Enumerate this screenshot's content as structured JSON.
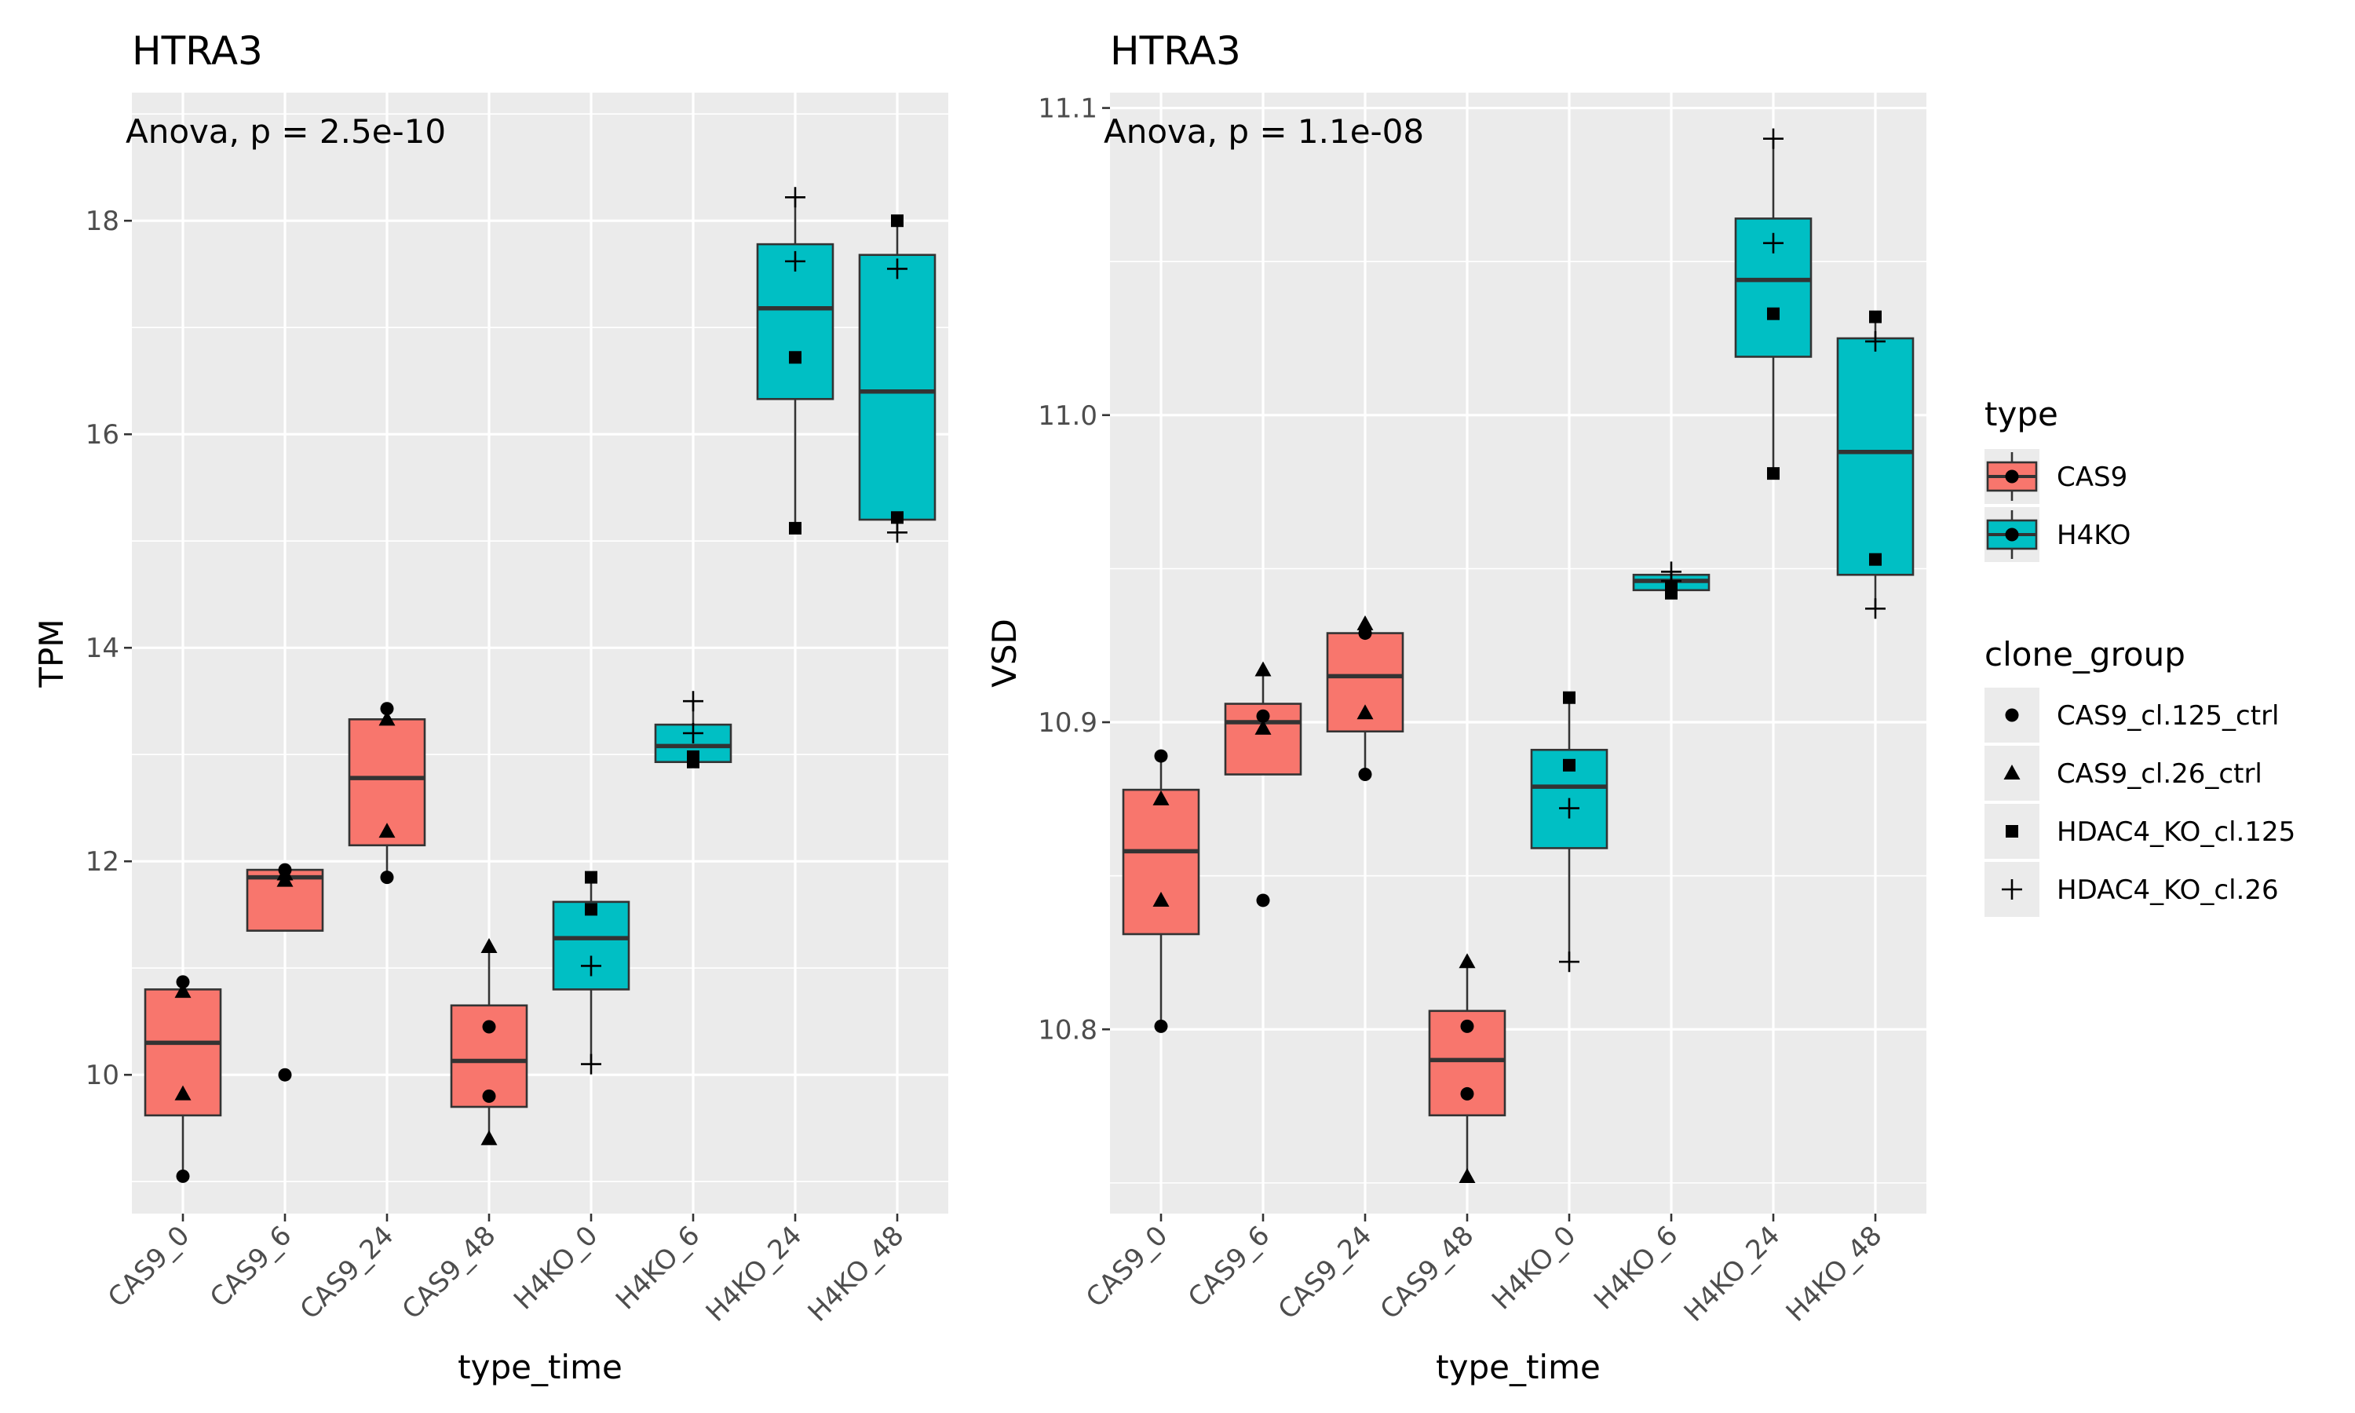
{
  "chart_data": [
    {
      "type": "box",
      "title": "HTRA3",
      "annotation": "Anova, p = 2.5e-10",
      "xlabel": "type_time",
      "ylabel": "TPM",
      "ylim": [
        8.7,
        19.2
      ],
      "yticks": [
        10,
        12,
        14,
        16,
        18
      ],
      "ytick_labels": [
        "10",
        "12",
        "14",
        "16",
        "18"
      ],
      "categories": [
        "CAS9_0",
        "CAS9_6",
        "CAS9_24",
        "CAS9_48",
        "H4KO_0",
        "H4KO_6",
        "H4KO_24",
        "H4KO_48"
      ],
      "boxes": [
        {
          "type": "CAS9",
          "lower": 9.05,
          "q1": 9.62,
          "median": 10.3,
          "q3": 10.8,
          "upper": 10.87
        },
        {
          "type": "CAS9",
          "lower": 11.35,
          "q1": 11.35,
          "median": 11.85,
          "q3": 11.92,
          "upper": 11.92
        },
        {
          "type": "CAS9",
          "lower": 11.85,
          "q1": 12.15,
          "median": 12.78,
          "q3": 13.33,
          "upper": 13.43
        },
        {
          "type": "CAS9",
          "lower": 9.4,
          "q1": 9.7,
          "median": 10.13,
          "q3": 10.65,
          "upper": 11.2
        },
        {
          "type": "H4KO",
          "lower": 10.1,
          "q1": 10.8,
          "median": 11.28,
          "q3": 11.62,
          "upper": 11.85
        },
        {
          "type": "H4KO",
          "lower": 12.93,
          "q1": 12.93,
          "median": 13.08,
          "q3": 13.28,
          "upper": 13.5
        },
        {
          "type": "H4KO",
          "lower": 15.12,
          "q1": 16.33,
          "median": 17.18,
          "q3": 17.78,
          "upper": 18.22
        },
        {
          "type": "H4KO",
          "lower": 15.08,
          "q1": 15.2,
          "median": 16.4,
          "q3": 17.68,
          "upper": 18.0
        }
      ],
      "points": [
        [
          {
            "group": 0,
            "y": 10.87
          },
          {
            "group": 1,
            "y": 10.78
          },
          {
            "group": 1,
            "y": 9.82
          },
          {
            "group": 0,
            "y": 9.05
          }
        ],
        [
          {
            "group": 0,
            "y": 11.92
          },
          {
            "group": 1,
            "y": 11.82
          },
          {
            "group": 0,
            "y": 10.0
          },
          {
            "group": 1,
            "y": 11.88
          }
        ],
        [
          {
            "group": 0,
            "y": 13.43
          },
          {
            "group": 1,
            "y": 13.33
          },
          {
            "group": 1,
            "y": 12.28
          },
          {
            "group": 0,
            "y": 11.85
          }
        ],
        [
          {
            "group": 1,
            "y": 11.2
          },
          {
            "group": 0,
            "y": 10.45
          },
          {
            "group": 0,
            "y": 9.8
          },
          {
            "group": 1,
            "y": 9.4
          }
        ],
        [
          {
            "group": 2,
            "y": 11.85
          },
          {
            "group": 2,
            "y": 11.55
          },
          {
            "group": 3,
            "y": 11.02
          },
          {
            "group": 3,
            "y": 10.1
          }
        ],
        [
          {
            "group": 3,
            "y": 13.5
          },
          {
            "group": 3,
            "y": 13.2
          },
          {
            "group": 2,
            "y": 12.93
          },
          {
            "group": 2,
            "y": 12.98
          }
        ],
        [
          {
            "group": 3,
            "y": 18.22
          },
          {
            "group": 3,
            "y": 17.62
          },
          {
            "group": 2,
            "y": 16.72
          },
          {
            "group": 2,
            "y": 15.12
          }
        ],
        [
          {
            "group": 2,
            "y": 18.0
          },
          {
            "group": 3,
            "y": 17.55
          },
          {
            "group": 2,
            "y": 15.22
          },
          {
            "group": 3,
            "y": 15.08
          }
        ]
      ]
    },
    {
      "type": "box",
      "title": "HTRA3",
      "annotation": "Anova, p = 1.1e-08",
      "xlabel": "type_time",
      "ylabel": "VSD",
      "ylim": [
        10.74,
        11.105
      ],
      "yticks": [
        10.8,
        10.9,
        11.0,
        11.1
      ],
      "ytick_labels": [
        "10.8",
        "10.9",
        "11.0",
        "11.1"
      ],
      "categories": [
        "CAS9_0",
        "CAS9_6",
        "CAS9_24",
        "CAS9_48",
        "H4KO_0",
        "H4KO_6",
        "H4KO_24",
        "H4KO_48"
      ],
      "boxes": [
        {
          "type": "CAS9",
          "lower": 10.801,
          "q1": 10.831,
          "median": 10.858,
          "q3": 10.878,
          "upper": 10.889
        },
        {
          "type": "CAS9",
          "lower": 10.883,
          "q1": 10.883,
          "median": 10.9,
          "q3": 10.906,
          "upper": 10.917
        },
        {
          "type": "CAS9",
          "lower": 10.883,
          "q1": 10.897,
          "median": 10.915,
          "q3": 10.929,
          "upper": 10.932
        },
        {
          "type": "CAS9",
          "lower": 10.752,
          "q1": 10.772,
          "median": 10.79,
          "q3": 10.806,
          "upper": 10.822
        },
        {
          "type": "H4KO",
          "lower": 10.822,
          "q1": 10.859,
          "median": 10.879,
          "q3": 10.891,
          "upper": 10.908
        },
        {
          "type": "H4KO",
          "lower": 10.943,
          "q1": 10.943,
          "median": 10.946,
          "q3": 10.948,
          "upper": 10.949
        },
        {
          "type": "H4KO",
          "lower": 10.981,
          "q1": 11.019,
          "median": 11.044,
          "q3": 11.064,
          "upper": 11.09
        },
        {
          "type": "H4KO",
          "lower": 10.937,
          "q1": 10.948,
          "median": 10.988,
          "q3": 11.025,
          "upper": 11.032
        }
      ],
      "points": [
        [
          {
            "group": 0,
            "y": 10.889
          },
          {
            "group": 1,
            "y": 10.875
          },
          {
            "group": 1,
            "y": 10.842
          },
          {
            "group": 0,
            "y": 10.801
          }
        ],
        [
          {
            "group": 1,
            "y": 10.917
          },
          {
            "group": 0,
            "y": 10.902
          },
          {
            "group": 1,
            "y": 10.898
          },
          {
            "group": 0,
            "y": 10.842
          }
        ],
        [
          {
            "group": 1,
            "y": 10.932
          },
          {
            "group": 0,
            "y": 10.929
          },
          {
            "group": 1,
            "y": 10.903
          },
          {
            "group": 0,
            "y": 10.883
          }
        ],
        [
          {
            "group": 1,
            "y": 10.822
          },
          {
            "group": 0,
            "y": 10.801
          },
          {
            "group": 0,
            "y": 10.779
          },
          {
            "group": 1,
            "y": 10.752
          }
        ],
        [
          {
            "group": 2,
            "y": 10.908
          },
          {
            "group": 2,
            "y": 10.886
          },
          {
            "group": 3,
            "y": 10.872
          },
          {
            "group": 3,
            "y": 10.822
          }
        ],
        [
          {
            "group": 3,
            "y": 10.949
          },
          {
            "group": 3,
            "y": 10.946
          },
          {
            "group": 2,
            "y": 10.944
          },
          {
            "group": 2,
            "y": 10.942
          }
        ],
        [
          {
            "group": 3,
            "y": 11.09
          },
          {
            "group": 3,
            "y": 11.056
          },
          {
            "group": 2,
            "y": 11.033
          },
          {
            "group": 2,
            "y": 10.981
          }
        ],
        [
          {
            "group": 2,
            "y": 11.032
          },
          {
            "group": 3,
            "y": 11.024
          },
          {
            "group": 2,
            "y": 10.953
          },
          {
            "group": 3,
            "y": 10.937
          }
        ]
      ]
    }
  ],
  "legend": {
    "placement": "right",
    "type": {
      "title": "type",
      "items": [
        {
          "label": "CAS9",
          "color": "#F8766D"
        },
        {
          "label": "H4KO",
          "color": "#00BFC4"
        }
      ]
    },
    "clone_group": {
      "title": "clone_group",
      "items": [
        {
          "label": "CAS9_cl.125_ctrl",
          "shape": "circle"
        },
        {
          "label": "CAS9_cl.26_ctrl",
          "shape": "triangle"
        },
        {
          "label": "HDAC4_KO_cl.125",
          "shape": "square"
        },
        {
          "label": "HDAC4_KO_cl.26",
          "shape": "plus"
        }
      ]
    }
  },
  "colors": {
    "CAS9": "#F8766D",
    "H4KO": "#00BFC4",
    "panel": "#EBEBEB",
    "grid": "#FFFFFF"
  }
}
